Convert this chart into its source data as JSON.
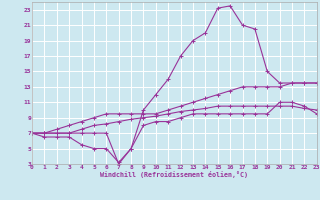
{
  "background_color": "#cde8f0",
  "grid_color": "#ffffff",
  "line_color": "#993399",
  "xlabel": "Windchill (Refroidissement éolien,°C)",
  "xlim": [
    0,
    23
  ],
  "ylim": [
    3,
    24
  ],
  "yticks": [
    3,
    5,
    7,
    9,
    11,
    13,
    15,
    17,
    19,
    21,
    23
  ],
  "xticks": [
    0,
    1,
    2,
    3,
    4,
    5,
    6,
    7,
    8,
    9,
    10,
    11,
    12,
    13,
    14,
    15,
    16,
    17,
    18,
    19,
    20,
    21,
    22,
    23
  ],
  "series": [
    {
      "x": [
        0,
        1,
        2,
        3,
        4,
        5,
        6,
        7,
        8,
        9,
        10,
        11,
        12,
        13,
        14,
        15,
        16,
        17,
        18,
        19,
        20,
        21,
        22,
        23
      ],
      "y": [
        7,
        7,
        7,
        7,
        7,
        7,
        7,
        3,
        5,
        10,
        12,
        14,
        17,
        19,
        20,
        23.2,
        23.5,
        21,
        20.5,
        15,
        13.5,
        13.5,
        13.5,
        13.5
      ]
    },
    {
      "x": [
        0,
        1,
        2,
        3,
        4,
        5,
        6,
        7,
        8,
        9,
        10,
        11,
        12,
        13,
        14,
        15,
        16,
        17,
        18,
        19,
        20,
        21,
        22,
        23
      ],
      "y": [
        7,
        7,
        7.5,
        8,
        8.5,
        9,
        9.5,
        9.5,
        9.5,
        9.5,
        9.5,
        10,
        10.5,
        11,
        11.5,
        12,
        12.5,
        13,
        13,
        13,
        13,
        13.5,
        13.5,
        13.5
      ]
    },
    {
      "x": [
        0,
        1,
        2,
        3,
        4,
        5,
        6,
        7,
        8,
        9,
        10,
        11,
        12,
        13,
        14,
        15,
        16,
        17,
        18,
        19,
        20,
        21,
        22,
        23
      ],
      "y": [
        7,
        7,
        7,
        7,
        7.5,
        8,
        8.2,
        8.5,
        8.8,
        9,
        9.2,
        9.5,
        9.8,
        10,
        10.2,
        10.5,
        10.5,
        10.5,
        10.5,
        10.5,
        10.5,
        10.5,
        10.2,
        10.0
      ]
    },
    {
      "x": [
        0,
        1,
        2,
        3,
        4,
        5,
        6,
        7,
        8,
        9,
        10,
        11,
        12,
        13,
        14,
        15,
        16,
        17,
        18,
        19,
        20,
        21,
        22,
        23
      ],
      "y": [
        7,
        6.5,
        6.5,
        6.5,
        5.5,
        5,
        5,
        3.2,
        5,
        8,
        8.5,
        8.5,
        9,
        9.5,
        9.5,
        9.5,
        9.5,
        9.5,
        9.5,
        9.5,
        11,
        11,
        10.5,
        9.5
      ]
    }
  ]
}
